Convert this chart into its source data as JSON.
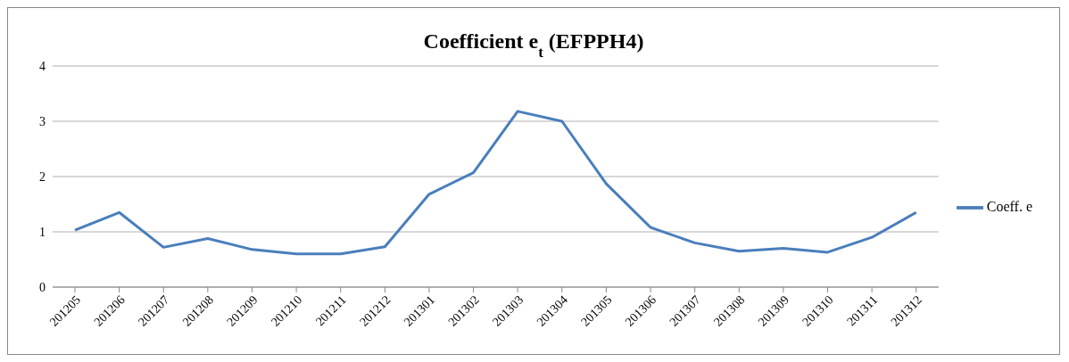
{
  "chart_data": {
    "type": "line",
    "title": "Coefficient  e$_{t}$ (EFPPH4)",
    "categories": [
      "201205",
      "201206",
      "201207",
      "201208",
      "201209",
      "201210",
      "201211",
      "201212",
      "201301",
      "201302",
      "201303",
      "201304",
      "201305",
      "201306",
      "201307",
      "201308",
      "201309",
      "201310",
      "201311",
      "201312"
    ],
    "series": [
      {
        "name": "Coeff. e",
        "color": "#4a7ebb",
        "values": [
          1.03,
          1.35,
          0.72,
          0.88,
          0.68,
          0.6,
          0.6,
          0.73,
          1.68,
          2.07,
          3.18,
          3.0,
          1.87,
          1.08,
          0.8,
          0.65,
          0.7,
          0.63,
          0.9,
          1.35
        ]
      }
    ],
    "ylim": [
      0,
      4
    ],
    "yticks": [
      0,
      1,
      2,
      3,
      4
    ],
    "grid": "y",
    "legend": "right",
    "marker": "none",
    "line_style": "solid"
  }
}
